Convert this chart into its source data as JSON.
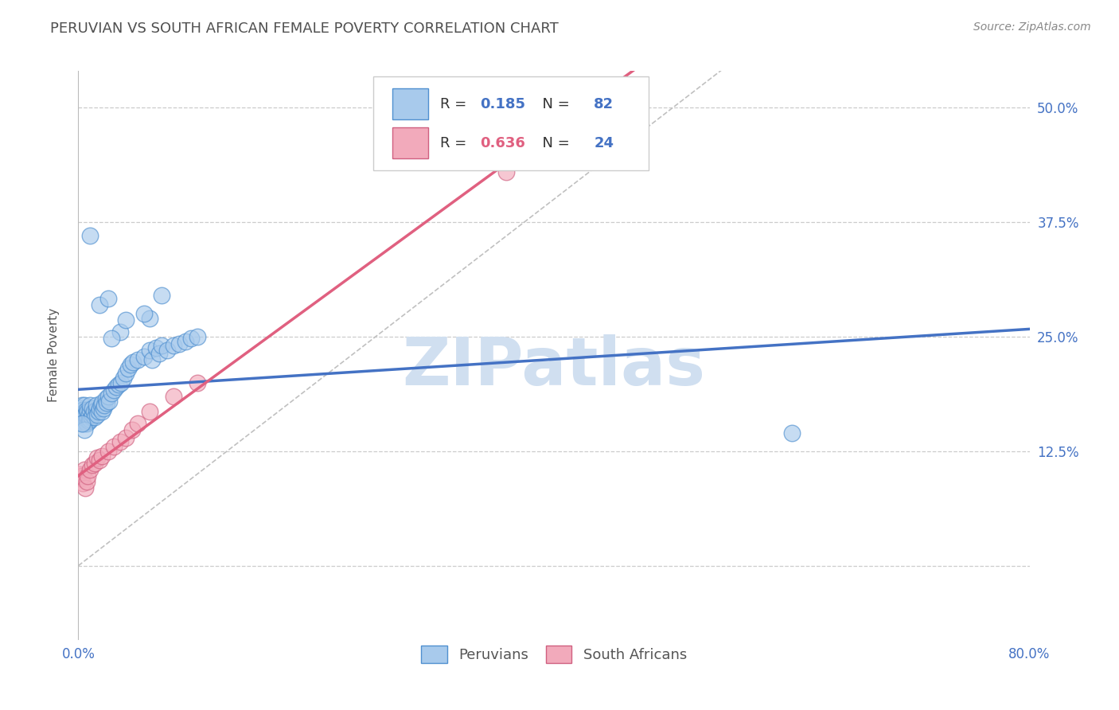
{
  "title": "PERUVIAN VS SOUTH AFRICAN FEMALE POVERTY CORRELATION CHART",
  "source": "Source: ZipAtlas.com",
  "ylabel": "Female Poverty",
  "xlim": [
    0.0,
    0.8
  ],
  "ylim": [
    -0.08,
    0.54
  ],
  "yticks": [
    0.0,
    0.125,
    0.25,
    0.375,
    0.5
  ],
  "ytick_labels": [
    "",
    "12.5%",
    "25.0%",
    "37.5%",
    "50.0%"
  ],
  "xtick_labels_edge": [
    "0.0%",
    "80.0%"
  ],
  "peruvian_color": "#A8CAEC",
  "sa_color": "#F2AABB",
  "peruvian_R": 0.185,
  "peruvian_N": 82,
  "sa_R": 0.636,
  "sa_N": 24,
  "watermark": "ZIPatlas",
  "watermark_color": "#D0DFF0",
  "legend_label1": "Peruvians",
  "legend_label2": "South Africans",
  "blue_line_color": "#4472C4",
  "pink_line_color": "#E06080",
  "ref_line_color": "#C0C0C0",
  "title_color": "#505050",
  "title_fontsize": 13,
  "peru_blue_edge": "#5090D0",
  "sa_pink_edge": "#D06080",
  "peru_x": [
    0.001,
    0.001,
    0.002,
    0.002,
    0.002,
    0.003,
    0.003,
    0.003,
    0.004,
    0.004,
    0.004,
    0.005,
    0.005,
    0.005,
    0.005,
    0.006,
    0.006,
    0.006,
    0.007,
    0.007,
    0.007,
    0.008,
    0.008,
    0.009,
    0.009,
    0.01,
    0.01,
    0.01,
    0.011,
    0.012,
    0.012,
    0.013,
    0.014,
    0.015,
    0.015,
    0.016,
    0.017,
    0.018,
    0.019,
    0.02,
    0.02,
    0.021,
    0.022,
    0.023,
    0.024,
    0.025,
    0.026,
    0.028,
    0.03,
    0.032,
    0.034,
    0.036,
    0.038,
    0.04,
    0.042,
    0.044,
    0.046,
    0.05,
    0.055,
    0.06,
    0.062,
    0.065,
    0.068,
    0.07,
    0.075,
    0.08,
    0.085,
    0.09,
    0.095,
    0.1,
    0.06,
    0.035,
    0.028,
    0.04,
    0.055,
    0.018,
    0.025,
    0.07,
    0.6,
    0.01,
    0.005,
    0.003
  ],
  "peru_y": [
    0.165,
    0.17,
    0.16,
    0.172,
    0.168,
    0.155,
    0.162,
    0.175,
    0.158,
    0.165,
    0.17,
    0.16,
    0.155,
    0.168,
    0.175,
    0.162,
    0.158,
    0.165,
    0.155,
    0.16,
    0.17,
    0.162,
    0.168,
    0.158,
    0.165,
    0.16,
    0.17,
    0.175,
    0.162,
    0.165,
    0.172,
    0.168,
    0.162,
    0.17,
    0.175,
    0.165,
    0.168,
    0.172,
    0.175,
    0.168,
    0.178,
    0.172,
    0.175,
    0.182,
    0.178,
    0.185,
    0.18,
    0.188,
    0.192,
    0.195,
    0.198,
    0.2,
    0.205,
    0.21,
    0.215,
    0.22,
    0.222,
    0.225,
    0.228,
    0.235,
    0.225,
    0.238,
    0.232,
    0.24,
    0.235,
    0.24,
    0.242,
    0.245,
    0.248,
    0.25,
    0.27,
    0.255,
    0.248,
    0.268,
    0.275,
    0.285,
    0.292,
    0.295,
    0.145,
    0.36,
    0.148,
    0.155
  ],
  "sa_x": [
    0.001,
    0.002,
    0.003,
    0.004,
    0.005,
    0.006,
    0.007,
    0.008,
    0.01,
    0.012,
    0.014,
    0.016,
    0.018,
    0.02,
    0.025,
    0.03,
    0.035,
    0.04,
    0.045,
    0.05,
    0.06,
    0.08,
    0.1,
    0.36
  ],
  "sa_y": [
    0.1,
    0.095,
    0.098,
    0.09,
    0.105,
    0.085,
    0.092,
    0.098,
    0.105,
    0.11,
    0.112,
    0.118,
    0.115,
    0.12,
    0.125,
    0.13,
    0.135,
    0.14,
    0.148,
    0.155,
    0.168,
    0.185,
    0.2,
    0.43
  ]
}
